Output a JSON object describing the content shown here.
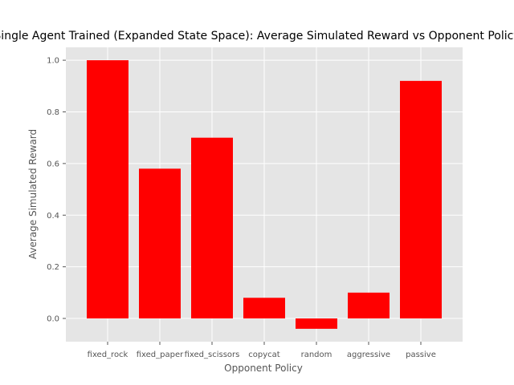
{
  "chart_data": {
    "type": "bar",
    "title": "Single Agent Trained (Expanded State Space): Average Simulated Reward vs Opponent Policy",
    "xlabel": "Opponent Policy",
    "ylabel": "Average Simulated Reward",
    "categories": [
      "fixed_rock",
      "fixed_paper",
      "fixed_scissors",
      "copycat",
      "random",
      "aggressive",
      "passive"
    ],
    "values": [
      1.0,
      0.58,
      0.7,
      0.08,
      -0.04,
      0.1,
      0.92
    ],
    "ylim": [
      -0.09,
      1.05
    ],
    "yticks": [
      "0.0",
      "0.2",
      "0.4",
      "0.6",
      "0.8",
      "1.0"
    ],
    "grid": true,
    "colors": {
      "bar": "#ff0000",
      "plot_background": "#e5e5e5",
      "grid": "#ffffff"
    }
  }
}
